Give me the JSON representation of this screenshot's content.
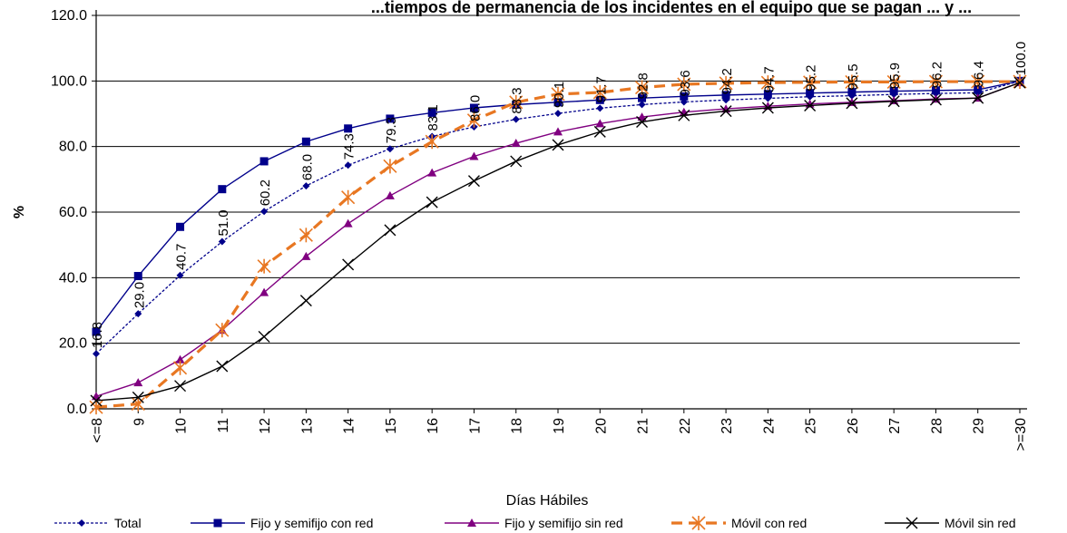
{
  "chart_data": {
    "type": "line",
    "title": "...tiempos de permanencia de los incidentes en el equipo que se pagan ... y ...",
    "xlabel": "Días Hábiles",
    "ylabel": "%",
    "ylim": [
      0,
      120
    ],
    "yticks": [
      "0.0",
      "20.0",
      "40.0",
      "60.0",
      "80.0",
      "100.0",
      "120.0"
    ],
    "grid": true,
    "legend_position": "bottom",
    "categories": [
      "<=8",
      "9",
      "10",
      "11",
      "12",
      "13",
      "14",
      "15",
      "16",
      "17",
      "18",
      "19",
      "20",
      "21",
      "22",
      "23",
      "24",
      "25",
      "26",
      "27",
      "28",
      "29",
      ">=30"
    ],
    "series": [
      {
        "name": "Total",
        "color": "#00008B",
        "style": "dotted",
        "marker": "diamond",
        "values": [
          16.8,
          29.0,
          40.7,
          51.0,
          60.2,
          68.0,
          74.3,
          79.3,
          83.1,
          86.0,
          88.3,
          90.1,
          91.7,
          92.8,
          93.6,
          94.2,
          94.7,
          95.2,
          95.5,
          95.9,
          96.2,
          96.4,
          100.0
        ],
        "data_labels": [
          "16.8",
          "29.0",
          "40.7",
          "51.0",
          "60.2",
          "68.0",
          "74.3",
          "79.3",
          "83.1",
          "86.0",
          "88.3",
          "90.1",
          "91.7",
          "92.8",
          "93.6",
          "94.2",
          "94.7",
          "95.2",
          "95.5",
          "95.9",
          "96.2",
          "96.4",
          "100.0"
        ]
      },
      {
        "name": "Fijo y semifijo con red",
        "color": "#00008B",
        "style": "solid",
        "marker": "square",
        "values": [
          23.5,
          40.5,
          55.5,
          67.0,
          75.5,
          81.5,
          85.5,
          88.5,
          90.3,
          91.8,
          92.8,
          93.5,
          94.2,
          94.8,
          95.3,
          95.7,
          96.0,
          96.3,
          96.6,
          96.9,
          97.1,
          97.3,
          100.0
        ]
      },
      {
        "name": "Fijo y semifijo sin red",
        "color": "#800080",
        "style": "solid",
        "marker": "triangle",
        "values": [
          3.8,
          8.0,
          15.0,
          24.0,
          35.5,
          46.5,
          56.5,
          65.0,
          72.0,
          77.0,
          81.0,
          84.5,
          87.0,
          89.0,
          90.5,
          91.5,
          92.3,
          93.0,
          93.5,
          94.0,
          94.5,
          94.8,
          99.5
        ]
      },
      {
        "name": "Móvil con red",
        "color": "#E87722",
        "style": "dashed",
        "marker": "star",
        "values": [
          0.5,
          1.5,
          12.5,
          24.0,
          43.5,
          53.0,
          64.5,
          74.0,
          81.5,
          88.0,
          93.5,
          96.0,
          96.5,
          98.0,
          99.0,
          99.3,
          99.5,
          99.6,
          99.7,
          99.7,
          99.8,
          99.8,
          99.8
        ]
      },
      {
        "name": "Móvil sin red",
        "color": "#000000",
        "style": "solid",
        "marker": "x",
        "values": [
          2.5,
          3.5,
          7.0,
          13.0,
          22.0,
          33.0,
          44.0,
          54.5,
          63.0,
          69.5,
          75.5,
          80.5,
          84.5,
          87.5,
          89.5,
          90.8,
          91.8,
          92.5,
          93.2,
          93.8,
          94.3,
          94.8,
          99.5
        ]
      }
    ]
  }
}
